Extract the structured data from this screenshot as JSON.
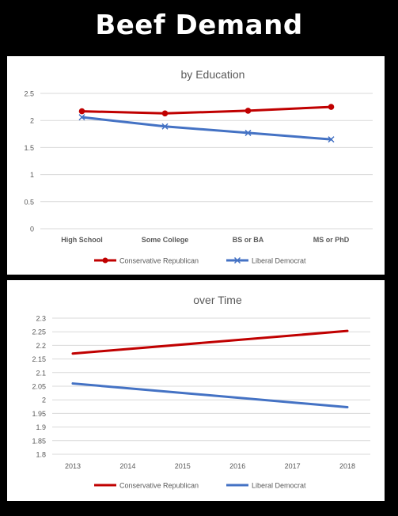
{
  "title": "Beef Demand",
  "colors": {
    "conservative": "#c00000",
    "liberal": "#4472c4",
    "grid": "#d9d9d9",
    "text": "#595959"
  },
  "chart_data": [
    {
      "type": "line",
      "title": "by Education",
      "categories": [
        "High School",
        "Some College",
        "BS or BA",
        "MS or PhD"
      ],
      "ylim": [
        0,
        2.5
      ],
      "yticks": [
        "0",
        "0.5",
        "1",
        "1.5",
        "2",
        "2.5"
      ],
      "grid": true,
      "legend_position": "bottom",
      "series": [
        {
          "name": "Conservative Republican",
          "values": [
            2.17,
            2.13,
            2.18,
            2.25
          ],
          "marker": "circle"
        },
        {
          "name": "Liberal Democrat",
          "values": [
            2.06,
            1.89,
            1.77,
            1.65
          ],
          "marker": "x"
        }
      ]
    },
    {
      "type": "line",
      "title": "over Time",
      "categories": [
        "2013",
        "2014",
        "2015",
        "2016",
        "2017",
        "2018"
      ],
      "ylim": [
        1.8,
        2.3
      ],
      "yticks": [
        "1.8",
        "1.85",
        "1.9",
        "1.95",
        "2",
        "2.05",
        "2.1",
        "2.15",
        "2.2",
        "2.25",
        "2.3"
      ],
      "grid": true,
      "legend_position": "bottom",
      "series": [
        {
          "name": "Conservative Republican",
          "x": [
            "2013",
            "2018"
          ],
          "values": [
            2.17,
            2.253
          ]
        },
        {
          "name": "Liberal Democrat",
          "x": [
            "2013",
            "2018"
          ],
          "values": [
            2.06,
            1.973
          ]
        }
      ]
    }
  ]
}
